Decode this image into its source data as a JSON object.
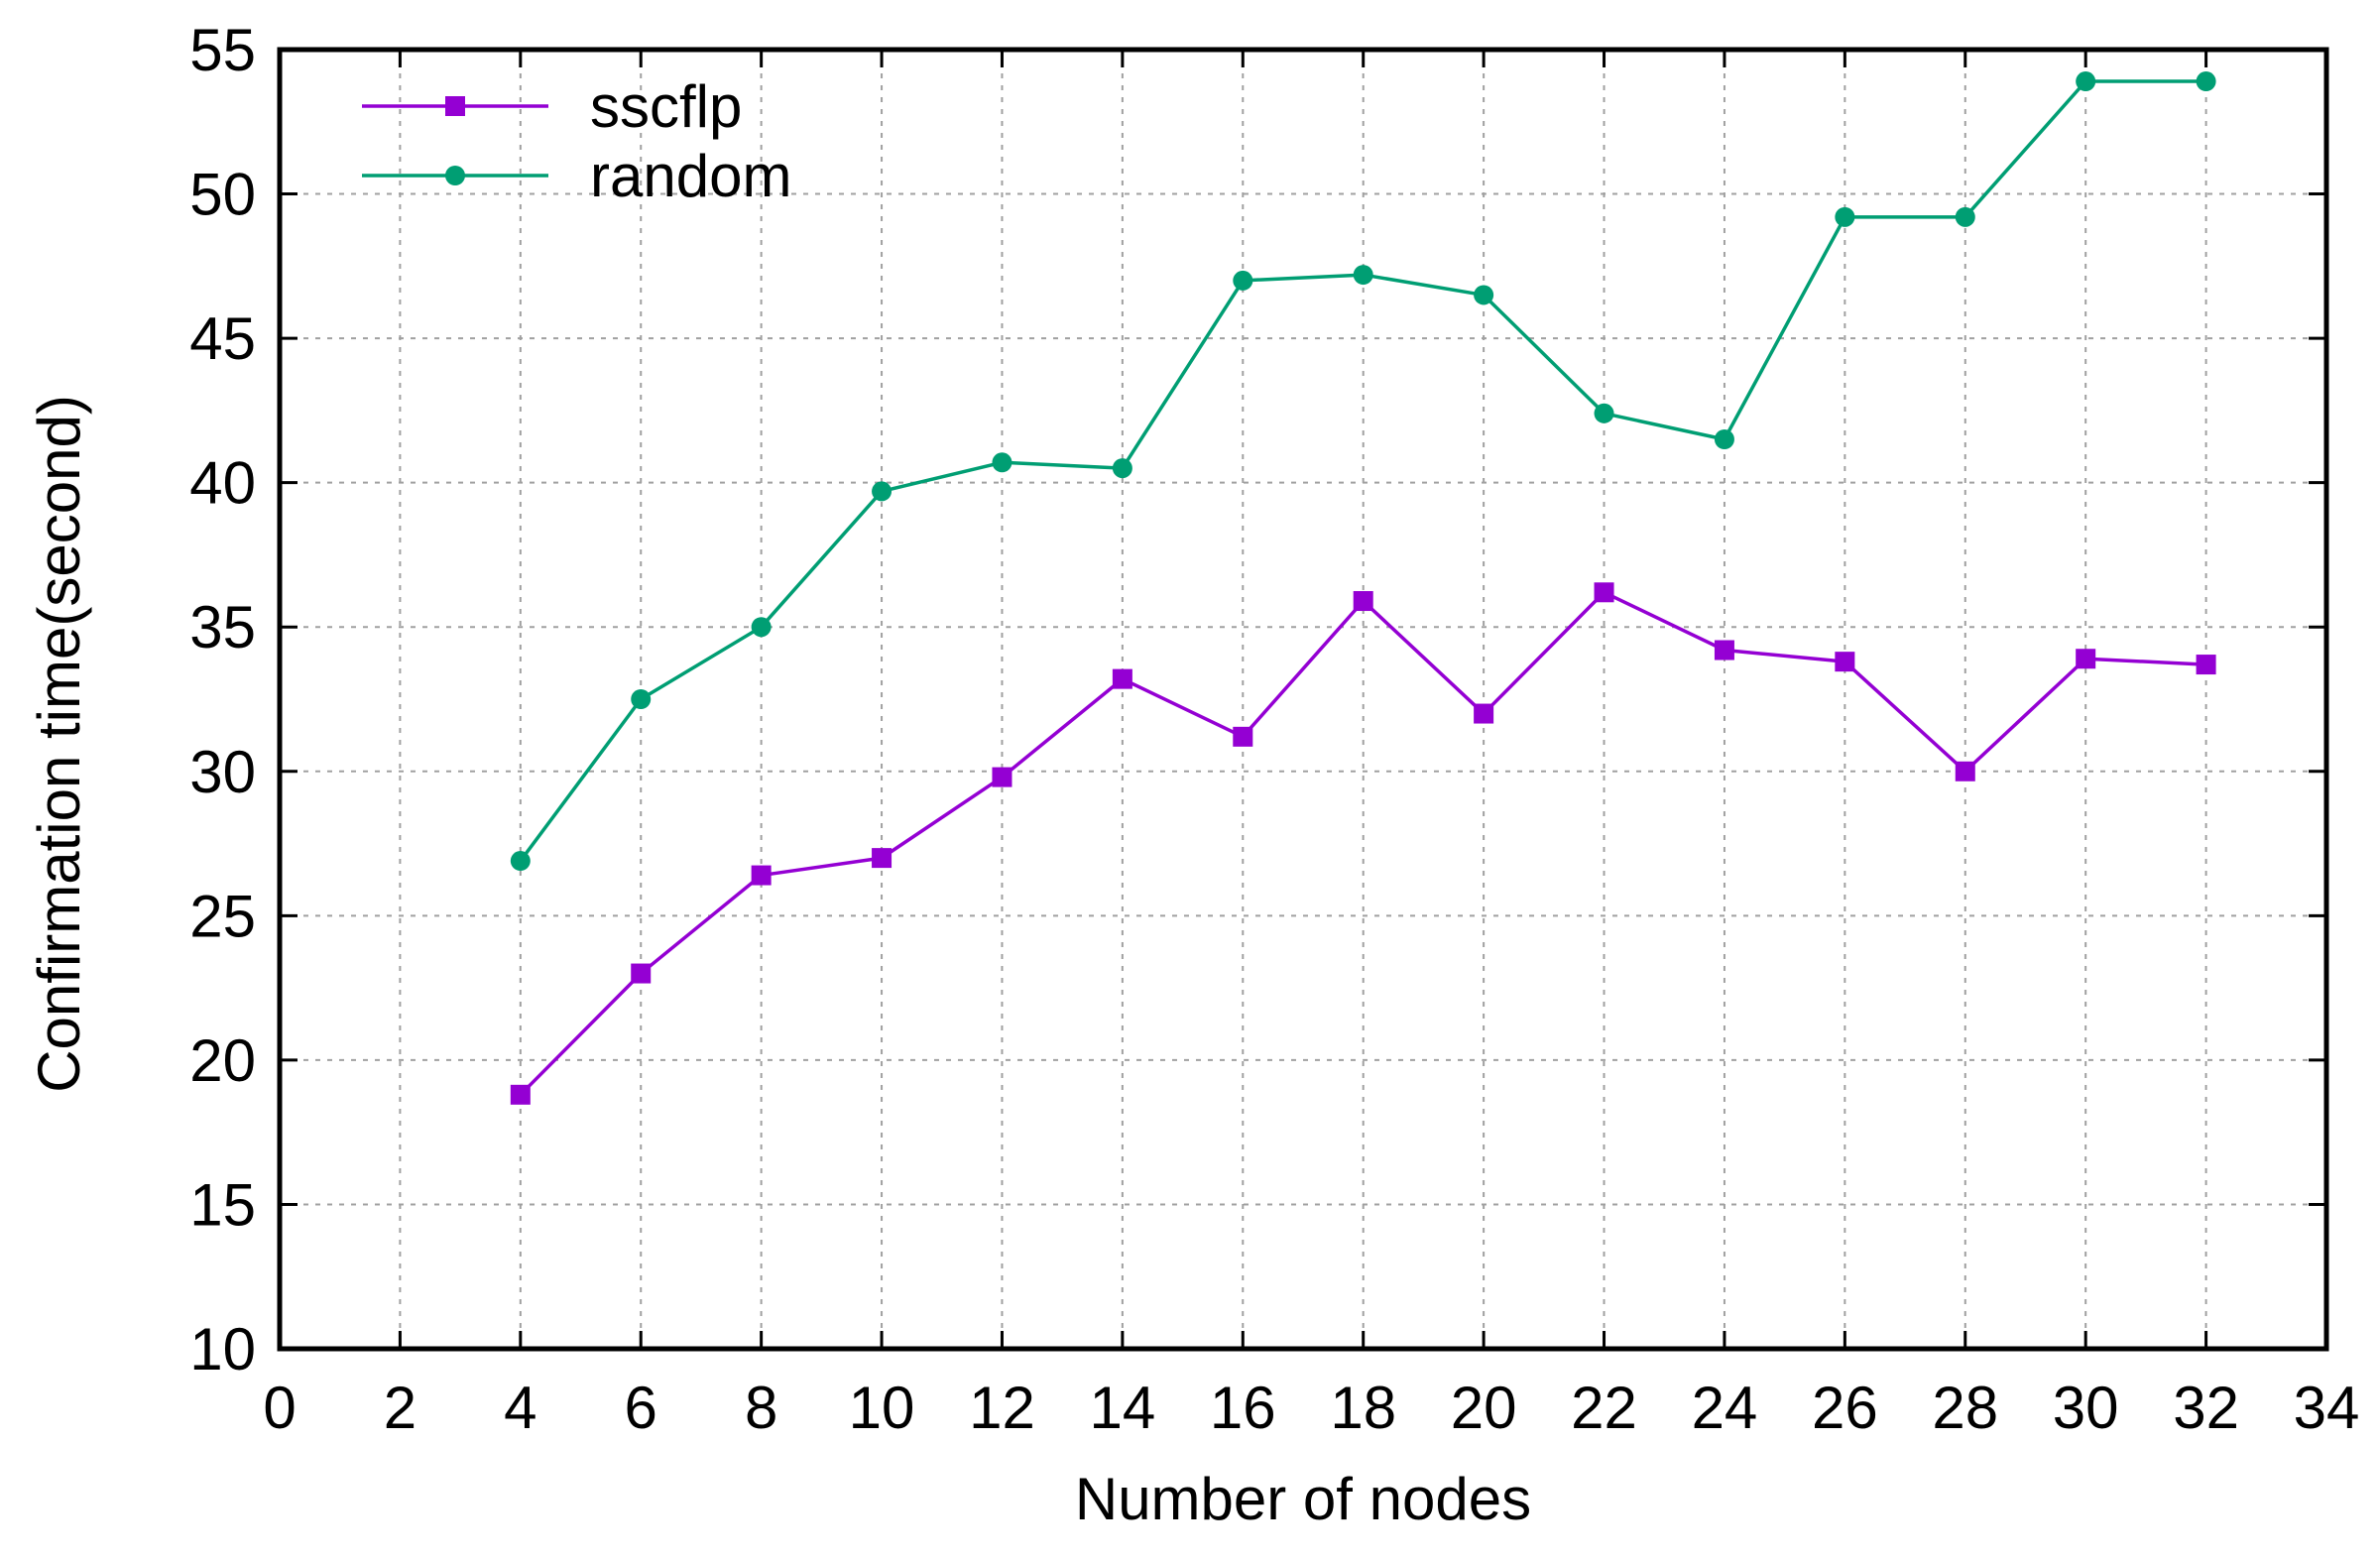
{
  "chart_data": {
    "type": "line",
    "title": "",
    "xlabel": "Number of nodes",
    "ylabel": "Confirmation time(second)",
    "xlim": [
      0,
      34
    ],
    "ylim": [
      10,
      55
    ],
    "xticks": [
      0,
      2,
      4,
      6,
      8,
      10,
      12,
      14,
      16,
      18,
      20,
      22,
      24,
      26,
      28,
      30,
      32,
      34
    ],
    "yticks": [
      10,
      15,
      20,
      25,
      30,
      35,
      40,
      45,
      50,
      55
    ],
    "grid": true,
    "legend_position": "top-left",
    "series": [
      {
        "name": "sscflp",
        "color": "#9400d3",
        "marker": "square",
        "x": [
          4,
          6,
          8,
          10,
          12,
          14,
          16,
          18,
          20,
          22,
          24,
          26,
          28,
          30,
          32
        ],
        "y": [
          18.8,
          23.0,
          26.4,
          27.0,
          29.8,
          33.2,
          31.2,
          35.9,
          32.0,
          36.2,
          34.2,
          33.8,
          30.0,
          33.9,
          33.7
        ]
      },
      {
        "name": "random",
        "color": "#009e73",
        "marker": "circle",
        "x": [
          4,
          6,
          8,
          10,
          12,
          14,
          16,
          18,
          20,
          22,
          24,
          26,
          28,
          30,
          32
        ],
        "y": [
          26.9,
          32.5,
          35.0,
          39.7,
          40.7,
          40.5,
          47.0,
          47.2,
          46.5,
          42.4,
          41.5,
          49.2,
          49.2,
          53.9,
          53.9
        ]
      }
    ]
  }
}
